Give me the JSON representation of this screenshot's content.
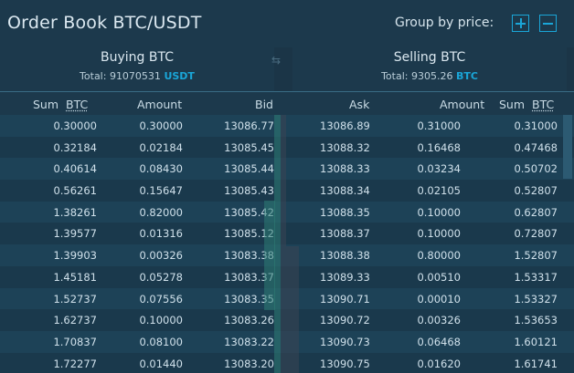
{
  "title": "Order Book BTC/USDT",
  "group_by_label": "Group by price:",
  "buying": {
    "title": "Buying BTC",
    "total_label": "Total: 91070531",
    "currency": "USDT"
  },
  "selling": {
    "title": "Selling BTC",
    "total_label": "Total: 9305.26",
    "currency": "BTC"
  },
  "columns": {
    "sum_label": "Sum",
    "sum_unit": "BTC",
    "amount": "Amount",
    "bid": "Bid",
    "ask": "Ask"
  },
  "colors": {
    "accent": "#1aa6d8",
    "bg": "#1b3547",
    "bid_depth": "#2e7d74",
    "ask_depth": "#3a4554"
  },
  "rows": [
    {
      "bsum": "0.30000",
      "bamt": "0.30000",
      "bid": "13086.77",
      "ask": "13086.89",
      "aamt": "0.31000",
      "asum": "0.31000"
    },
    {
      "bsum": "0.32184",
      "bamt": "0.02184",
      "bid": "13085.45",
      "ask": "13088.32",
      "aamt": "0.16468",
      "asum": "0.47468"
    },
    {
      "bsum": "0.40614",
      "bamt": "0.08430",
      "bid": "13085.44",
      "ask": "13088.33",
      "aamt": "0.03234",
      "asum": "0.50702"
    },
    {
      "bsum": "0.56261",
      "bamt": "0.15647",
      "bid": "13085.43",
      "ask": "13088.34",
      "aamt": "0.02105",
      "asum": "0.52807"
    },
    {
      "bsum": "1.38261",
      "bamt": "0.82000",
      "bid": "13085.42",
      "ask": "13088.35",
      "aamt": "0.10000",
      "asum": "0.62807"
    },
    {
      "bsum": "1.39577",
      "bamt": "0.01316",
      "bid": "13085.12",
      "ask": "13088.37",
      "aamt": "0.10000",
      "asum": "0.72807"
    },
    {
      "bsum": "1.39903",
      "bamt": "0.00326",
      "bid": "13083.38",
      "ask": "13088.38",
      "aamt": "0.80000",
      "asum": "1.52807"
    },
    {
      "bsum": "1.45181",
      "bamt": "0.05278",
      "bid": "13083.37",
      "ask": "13089.33",
      "aamt": "0.00510",
      "asum": "1.53317"
    },
    {
      "bsum": "1.52737",
      "bamt": "0.07556",
      "bid": "13083.35",
      "ask": "13090.71",
      "aamt": "0.00010",
      "asum": "1.53327"
    },
    {
      "bsum": "1.62737",
      "bamt": "0.10000",
      "bid": "13083.26",
      "ask": "13090.72",
      "aamt": "0.00326",
      "asum": "1.53653"
    },
    {
      "bsum": "1.70837",
      "bamt": "0.08100",
      "bid": "13083.22",
      "ask": "13090.73",
      "aamt": "0.06468",
      "asum": "1.60121"
    },
    {
      "bsum": "1.72277",
      "bamt": "0.01440",
      "bid": "13083.20",
      "ask": "13090.75",
      "aamt": "0.01620",
      "asum": "1.61741"
    }
  ]
}
